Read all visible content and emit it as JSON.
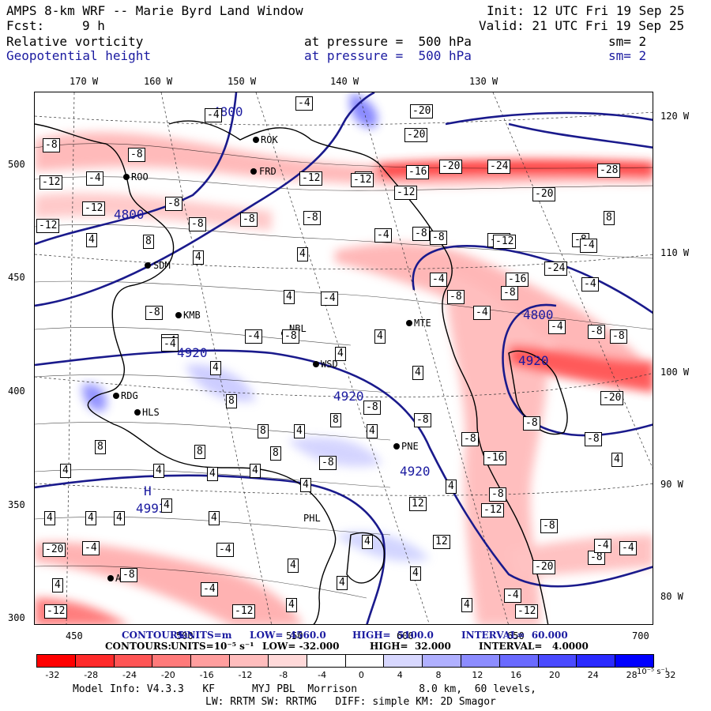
{
  "header": {
    "title": "AMPS 8-km WRF -- Marie Byrd Land Window",
    "init": "Init: 12 UTC Fri 19 Sep 25",
    "fcst_label": "Fcst:",
    "fcst_value": "9 h",
    "valid": "Valid: 21 UTC Fri 19 Sep 25",
    "field1": {
      "name": "Relative vorticity",
      "level": "at pressure =  500 hPa",
      "sm": "sm= 2"
    },
    "field2": {
      "name": "Geopotential height",
      "level": "at pressure =  500 hPa",
      "sm": "sm= 2"
    }
  },
  "axes": {
    "top": [
      "170 W",
      "160 W",
      "150 W",
      "140 W",
      "130 W"
    ],
    "right": [
      "120 W",
      "110 W",
      "100 W",
      "90 W",
      "80 W"
    ],
    "left": [
      "500",
      "450",
      "400",
      "350",
      "300"
    ],
    "bottom": [
      "450",
      "500",
      "550",
      "600",
      "650",
      "700"
    ]
  },
  "stations": [
    "ROO",
    "FRD",
    "ROK",
    "SDM",
    "KMB",
    "NBL",
    "WSD",
    "MTE",
    "RDG",
    "HLS",
    "PNE",
    "PHL",
    "ASL"
  ],
  "height_labels": [
    "4800",
    "4800",
    "4800",
    "4920",
    "4920",
    "4920",
    "4920"
  ],
  "high_center": {
    "letter": "H",
    "value": "4993"
  },
  "vort_labels": [
    "-4",
    "-8",
    "-12",
    "-16",
    "-20",
    "-24",
    "-28",
    "4",
    "8",
    "12"
  ],
  "contours_line1": {
    "prefix": "CONTOURS:",
    "units": "UNITS=m",
    "low": "LOW=  4560.0",
    "high": "HIGH=  5100.0",
    "interval": "INTERVAL=  60.000"
  },
  "contours_line2": {
    "prefix": "CONTOURS:",
    "units": "UNITS=10⁻⁵ s⁻¹",
    "low": "LOW= -32.000",
    "high": "HIGH=  32.000",
    "interval": "INTERVAL=   4.0000"
  },
  "colorbar": {
    "labels": [
      "-32",
      "-28",
      "-24",
      "-20",
      "-16",
      "-12",
      "-8",
      "-4",
      "0",
      "4",
      "8",
      "12",
      "16",
      "20",
      "24",
      "28",
      "32"
    ],
    "unit": "10⁻⁵ s⁻¹",
    "colors": [
      "#ff0000",
      "#ff2a2a",
      "#ff5555",
      "#ff7a7a",
      "#ff9e9e",
      "#ffbdbd",
      "#ffd9d9",
      "#ffffff",
      "#ffffff",
      "#d8d8ff",
      "#b0b0ff",
      "#8c8cff",
      "#6a6aff",
      "#4a4aff",
      "#2a2aff",
      "#0000ff"
    ]
  },
  "footer": {
    "line1": "Model Info: V4.3.3   KF      MYJ PBL  Morrison          8.0 km,  60 levels,",
    "line2": "LW: RRTM SW: RRTMG   DIFF: simple KM: 2D Smagor"
  }
}
